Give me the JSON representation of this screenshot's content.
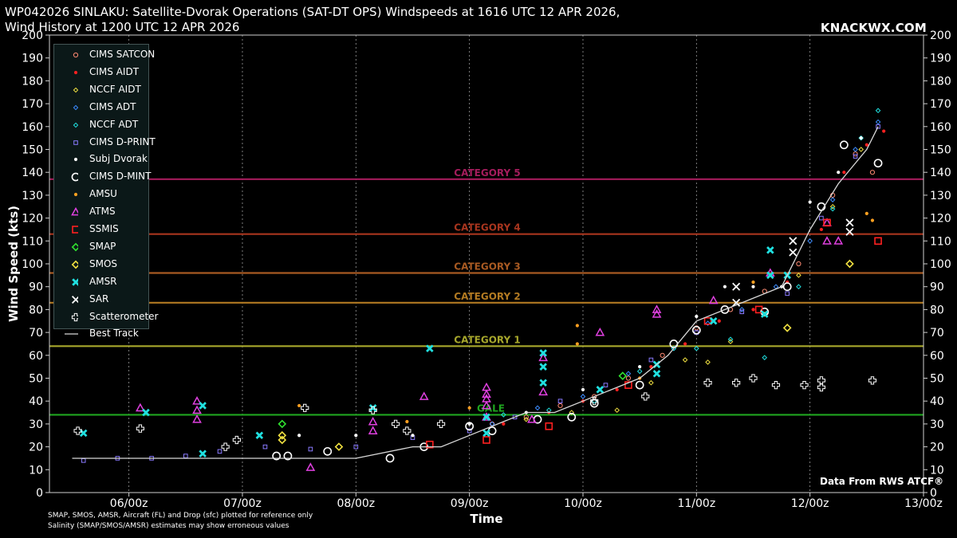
{
  "header": {
    "title_line1": "WP042026 SINLAKU: Satellite-Dvorak Operations (SAT-DT OPS) Windspeeds at 1616 UTC 12 APR 2026,",
    "title_line2": "Wind History at 1200 UTC 12 APR 2026",
    "brand": "KNACKWX.COM",
    "source": "Data From RWS ATCF®",
    "footnote_line1": "SMAP, SMOS, AMSR, Aircraft (FL) and Drop (sfc) plotted for reference only",
    "footnote_line2": "Salinity (SMAP/SMOS/AMSR) estimates may show erroneous values"
  },
  "chart_data": {
    "type": "scatter",
    "xlabel": "Time",
    "ylabel": "Wind Speed (kts)",
    "ylim": [
      0,
      200
    ],
    "y_ticks": [
      0,
      10,
      20,
      30,
      40,
      50,
      60,
      70,
      80,
      90,
      100,
      110,
      120,
      130,
      140,
      150,
      160,
      170,
      180,
      190,
      200
    ],
    "xlim_days": [
      5.3,
      13.0
    ],
    "x_ticks": [
      {
        "day": 6,
        "label": "06/00z"
      },
      {
        "day": 7,
        "label": "07/00z"
      },
      {
        "day": 8,
        "label": "08/00z"
      },
      {
        "day": 9,
        "label": "09/00z"
      },
      {
        "day": 10,
        "label": "10/00z"
      },
      {
        "day": 11,
        "label": "11/00z"
      },
      {
        "day": 12,
        "label": "12/00z"
      },
      {
        "day": 13,
        "label": "13/00z"
      }
    ],
    "grid": "vertical dotted at ticks",
    "legend_position": "top-left",
    "thresholds": [
      {
        "label": "GALE",
        "value": 34,
        "color": "#1fa51f"
      },
      {
        "label": "CATEGORY 1",
        "value": 64,
        "color": "#a7a72c"
      },
      {
        "label": "CATEGORY 2",
        "value": 83,
        "color": "#b27a22"
      },
      {
        "label": "CATEGORY 3",
        "value": 96,
        "color": "#a85a22"
      },
      {
        "label": "CATEGORY 4",
        "value": 113,
        "color": "#a8351e"
      },
      {
        "label": "CATEGORY 5",
        "value": 137,
        "color": "#a41c5c"
      }
    ],
    "series": [
      {
        "name": "CIMS SATCON",
        "marker": "circle-open",
        "color": "#ff8a72",
        "points": [
          [
            9.2,
            30
          ],
          [
            9.5,
            33
          ],
          [
            9.8,
            38
          ],
          [
            10.1,
            42
          ],
          [
            10.4,
            50
          ],
          [
            10.7,
            60
          ],
          [
            11.0,
            72
          ],
          [
            11.3,
            80
          ],
          [
            11.6,
            88
          ],
          [
            11.9,
            100
          ],
          [
            12.2,
            130
          ],
          [
            12.4,
            148
          ],
          [
            12.55,
            140
          ]
        ]
      },
      {
        "name": "CIMS AIDT",
        "marker": "dot",
        "color": "#ff2020",
        "points": [
          [
            9.3,
            30
          ],
          [
            9.7,
            35
          ],
          [
            10.0,
            40
          ],
          [
            10.3,
            45
          ],
          [
            10.6,
            55
          ],
          [
            10.9,
            65
          ],
          [
            11.2,
            75
          ],
          [
            11.5,
            80
          ],
          [
            11.8,
            92
          ],
          [
            12.1,
            115
          ],
          [
            12.3,
            140
          ],
          [
            12.5,
            152
          ],
          [
            12.65,
            158
          ]
        ]
      },
      {
        "name": "NCCF AIDT",
        "marker": "diamond-small",
        "color": "#f0e040",
        "points": [
          [
            9.5,
            32
          ],
          [
            9.9,
            35
          ],
          [
            10.3,
            36
          ],
          [
            10.6,
            48
          ],
          [
            10.9,
            58
          ],
          [
            11.1,
            57
          ],
          [
            11.3,
            66
          ],
          [
            11.6,
            78
          ],
          [
            11.9,
            95
          ],
          [
            12.2,
            125
          ],
          [
            12.45,
            150
          ]
        ]
      },
      {
        "name": "CIMS ADT",
        "marker": "diamond-small",
        "color": "#3c8cff",
        "points": [
          [
            9.2,
            30
          ],
          [
            9.6,
            37
          ],
          [
            10.0,
            42
          ],
          [
            10.4,
            52
          ],
          [
            10.8,
            63
          ],
          [
            11.1,
            74
          ],
          [
            11.4,
            80
          ],
          [
            11.7,
            90
          ],
          [
            12.0,
            110
          ],
          [
            12.2,
            128
          ],
          [
            12.4,
            150
          ],
          [
            12.6,
            162
          ]
        ]
      },
      {
        "name": "NCCF ADT",
        "marker": "diamond-small",
        "color": "#20e0e0",
        "points": [
          [
            9.3,
            34
          ],
          [
            9.7,
            36
          ],
          [
            10.1,
            40
          ],
          [
            10.5,
            53
          ],
          [
            10.8,
            63
          ],
          [
            11.0,
            63
          ],
          [
            11.3,
            67
          ],
          [
            11.6,
            59
          ],
          [
            11.9,
            90
          ],
          [
            12.2,
            124
          ],
          [
            12.45,
            155
          ],
          [
            12.6,
            167
          ]
        ]
      },
      {
        "name": "CIMS D-PRINT",
        "marker": "square-open",
        "color": "#8a7aff",
        "points": [
          [
            5.6,
            14
          ],
          [
            5.9,
            15
          ],
          [
            6.2,
            15
          ],
          [
            6.5,
            16
          ],
          [
            6.8,
            18
          ],
          [
            7.2,
            20
          ],
          [
            7.6,
            19
          ],
          [
            8.0,
            20
          ],
          [
            8.5,
            24
          ],
          [
            9.0,
            27
          ],
          [
            9.4,
            33
          ],
          [
            9.8,
            40
          ],
          [
            10.2,
            47
          ],
          [
            10.6,
            58
          ],
          [
            11.0,
            70
          ],
          [
            11.4,
            79
          ],
          [
            11.8,
            87
          ],
          [
            12.1,
            120
          ],
          [
            12.4,
            147
          ],
          [
            12.6,
            160
          ]
        ]
      },
      {
        "name": "Subj Dvorak",
        "marker": "dot",
        "color": "#ffffff",
        "points": [
          [
            7.5,
            25
          ],
          [
            8.0,
            25
          ],
          [
            8.5,
            25
          ],
          [
            9.0,
            30
          ],
          [
            9.5,
            35
          ],
          [
            10.0,
            45
          ],
          [
            10.5,
            55
          ],
          [
            11.0,
            77
          ],
          [
            11.25,
            90
          ],
          [
            11.5,
            90
          ],
          [
            11.75,
            90
          ],
          [
            12.0,
            127
          ],
          [
            12.25,
            140
          ],
          [
            12.45,
            155
          ]
        ]
      },
      {
        "name": "CIMS D-MINT",
        "marker": "circle-large",
        "color": "#ffffff",
        "points": [
          [
            7.3,
            16
          ],
          [
            7.4,
            16
          ],
          [
            7.75,
            18
          ],
          [
            8.3,
            15
          ],
          [
            8.6,
            20
          ],
          [
            9.0,
            29
          ],
          [
            9.2,
            27
          ],
          [
            9.6,
            32
          ],
          [
            9.9,
            33
          ],
          [
            10.1,
            39
          ],
          [
            10.5,
            47
          ],
          [
            10.8,
            65
          ],
          [
            11.0,
            71
          ],
          [
            11.25,
            80
          ],
          [
            11.6,
            79
          ],
          [
            11.8,
            90
          ],
          [
            12.1,
            125
          ],
          [
            12.3,
            152
          ],
          [
            12.6,
            144
          ]
        ]
      },
      {
        "name": "AMSU",
        "marker": "dot",
        "color": "#ffa020",
        "points": [
          [
            7.5,
            38
          ],
          [
            8.45,
            31
          ],
          [
            9.0,
            37
          ],
          [
            9.95,
            73
          ],
          [
            9.95,
            65
          ],
          [
            10.5,
            50
          ],
          [
            11.5,
            92
          ],
          [
            12.5,
            122
          ],
          [
            12.55,
            119
          ]
        ]
      },
      {
        "name": "ATMS",
        "marker": "triangle-open",
        "color": "#e040e0",
        "points": [
          [
            6.1,
            37
          ],
          [
            6.6,
            40
          ],
          [
            6.6,
            36
          ],
          [
            6.6,
            32
          ],
          [
            7.6,
            11
          ],
          [
            8.15,
            31
          ],
          [
            8.15,
            27
          ],
          [
            8.6,
            42
          ],
          [
            9.15,
            46
          ],
          [
            9.15,
            43
          ],
          [
            9.15,
            41
          ],
          [
            9.15,
            38
          ],
          [
            9.15,
            33
          ],
          [
            9.55,
            32
          ],
          [
            9.65,
            59
          ],
          [
            9.65,
            44
          ],
          [
            10.15,
            70
          ],
          [
            10.65,
            80
          ],
          [
            10.65,
            78
          ],
          [
            11.15,
            84
          ],
          [
            11.65,
            96
          ],
          [
            12.15,
            118
          ],
          [
            12.15,
            110
          ],
          [
            12.25,
            110
          ]
        ]
      },
      {
        "name": "SSMIS",
        "marker": "square-large",
        "color": "#ff2020",
        "points": [
          [
            8.65,
            21
          ],
          [
            9.15,
            23
          ],
          [
            9.7,
            29
          ],
          [
            10.4,
            47
          ],
          [
            11.1,
            75
          ],
          [
            11.55,
            80
          ],
          [
            12.15,
            118
          ],
          [
            12.6,
            110
          ]
        ]
      },
      {
        "name": "SMAP",
        "marker": "diamond-large",
        "color": "#30e030",
        "points": [
          [
            7.35,
            30
          ],
          [
            10.35,
            51
          ]
        ]
      },
      {
        "name": "SMOS",
        "marker": "diamond-large",
        "color": "#f0e040",
        "points": [
          [
            7.35,
            25
          ],
          [
            7.35,
            23
          ],
          [
            7.85,
            20
          ],
          [
            11.8,
            72
          ],
          [
            12.35,
            100
          ]
        ]
      },
      {
        "name": "AMSR",
        "marker": "x-thick",
        "color": "#20e0e0",
        "points": [
          [
            5.6,
            26
          ],
          [
            6.15,
            35
          ],
          [
            6.65,
            17
          ],
          [
            6.65,
            38
          ],
          [
            7.15,
            25
          ],
          [
            8.15,
            37
          ],
          [
            8.65,
            63
          ],
          [
            9.15,
            33
          ],
          [
            9.15,
            26
          ],
          [
            9.65,
            61
          ],
          [
            9.65,
            55
          ],
          [
            9.65,
            48
          ],
          [
            10.15,
            45
          ],
          [
            10.65,
            52
          ],
          [
            10.65,
            56
          ],
          [
            11.15,
            75
          ],
          [
            11.6,
            78
          ],
          [
            11.65,
            95
          ],
          [
            11.65,
            106
          ],
          [
            11.8,
            95
          ]
        ]
      },
      {
        "name": "SAR",
        "marker": "x-thin",
        "color": "#ffffff",
        "points": [
          [
            11.35,
            90
          ],
          [
            11.35,
            83
          ],
          [
            11.85,
            110
          ],
          [
            11.85,
            105
          ],
          [
            12.35,
            114
          ],
          [
            12.35,
            118
          ]
        ]
      },
      {
        "name": "Scatterometer",
        "marker": "plus-open",
        "color": "#ffffff",
        "points": [
          [
            5.55,
            27
          ],
          [
            6.1,
            28
          ],
          [
            6.85,
            20
          ],
          [
            6.95,
            23
          ],
          [
            7.55,
            37
          ],
          [
            8.15,
            36
          ],
          [
            8.35,
            30
          ],
          [
            8.45,
            27
          ],
          [
            8.75,
            30
          ],
          [
            10.1,
            40
          ],
          [
            10.55,
            42
          ],
          [
            11.1,
            48
          ],
          [
            11.35,
            48
          ],
          [
            11.5,
            50
          ],
          [
            11.7,
            47
          ],
          [
            11.95,
            47
          ],
          [
            12.1,
            49
          ],
          [
            12.1,
            46
          ],
          [
            12.55,
            49
          ]
        ]
      },
      {
        "name": "Best Track",
        "marker": "line",
        "color": "#d8d8d8",
        "points": [
          [
            5.5,
            15
          ],
          [
            6.0,
            15
          ],
          [
            6.5,
            15
          ],
          [
            7.0,
            15
          ],
          [
            7.5,
            15
          ],
          [
            8.0,
            15
          ],
          [
            8.5,
            20
          ],
          [
            8.75,
            20
          ],
          [
            9.0,
            25
          ],
          [
            9.25,
            30
          ],
          [
            9.5,
            35
          ],
          [
            9.75,
            35
          ],
          [
            10.0,
            40
          ],
          [
            10.25,
            45
          ],
          [
            10.5,
            50
          ],
          [
            10.75,
            60
          ],
          [
            11.0,
            75
          ],
          [
            11.25,
            80
          ],
          [
            11.5,
            85
          ],
          [
            11.75,
            90
          ],
          [
            12.0,
            115
          ],
          [
            12.25,
            135
          ],
          [
            12.5,
            150
          ],
          [
            12.6,
            160
          ]
        ]
      }
    ]
  }
}
